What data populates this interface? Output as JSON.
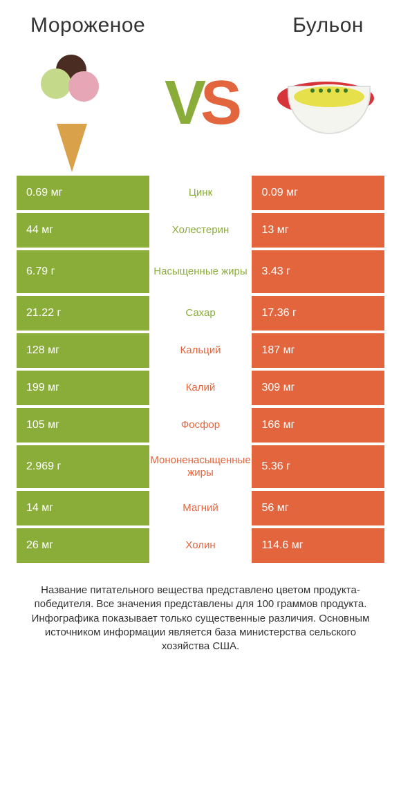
{
  "header": {
    "left": "Мороженое",
    "right": "Бульон"
  },
  "vs": {
    "v": "V",
    "s": "S"
  },
  "colors": {
    "green": "#8aad3a",
    "orange": "#e2653e",
    "text": "#333333",
    "white": "#ffffff"
  },
  "rows": [
    {
      "left": "0.69 мг",
      "mid": "Цинк",
      "right": "0.09 мг",
      "winner": "green",
      "tall": false
    },
    {
      "left": "44 мг",
      "mid": "Холестерин",
      "right": "13 мг",
      "winner": "green",
      "tall": false
    },
    {
      "left": "6.79 г",
      "mid": "Насыщенные жиры",
      "right": "3.43 г",
      "winner": "green",
      "tall": true
    },
    {
      "left": "21.22 г",
      "mid": "Сахар",
      "right": "17.36 г",
      "winner": "green",
      "tall": false
    },
    {
      "left": "128 мг",
      "mid": "Кальций",
      "right": "187 мг",
      "winner": "orange",
      "tall": false
    },
    {
      "left": "199 мг",
      "mid": "Калий",
      "right": "309 мг",
      "winner": "orange",
      "tall": false
    },
    {
      "left": "105 мг",
      "mid": "Фосфор",
      "right": "166 мг",
      "winner": "orange",
      "tall": false
    },
    {
      "left": "2.969 г",
      "mid": "Мононенасыщенные жиры",
      "right": "5.36 г",
      "winner": "orange",
      "tall": true
    },
    {
      "left": "14 мг",
      "mid": "Магний",
      "right": "56 мг",
      "winner": "orange",
      "tall": false
    },
    {
      "left": "26 мг",
      "mid": "Холин",
      "right": "114.6 мг",
      "winner": "orange",
      "tall": false
    }
  ],
  "footnote": "Название питательного вещества представлено цветом продукта-победителя.\nВсе значения представлены для 100 граммов продукта.\nИнфографика показывает только существенные различия.\nОсновным источником информации является база министерства сельского хозяйства США."
}
